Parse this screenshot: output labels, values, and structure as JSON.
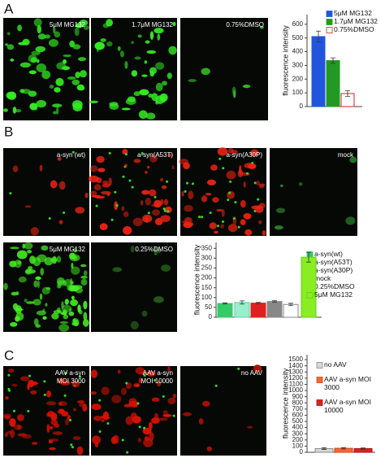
{
  "panels": [
    {
      "label": "A",
      "images": [
        [
          "5μM MG132"
        ],
        [
          "1.7μM MG132"
        ],
        [
          "0.75%DMSO"
        ]
      ]
    },
    {
      "label": "B",
      "images": [
        [
          "a-syn (wt)"
        ],
        [
          "a-syn(A53T)"
        ],
        [
          "a-syn(A30P)"
        ],
        [
          "mock"
        ],
        [
          "5μM MG132"
        ],
        [
          "0.25%DMSO"
        ]
      ]
    },
    {
      "label": "C",
      "images": [
        [
          "AAV   a-syn",
          "MOI 3000"
        ],
        [
          "AAV   a-syn",
          "MOI 10000"
        ],
        [
          "no AAV"
        ]
      ]
    }
  ],
  "chart_data": [
    {
      "type": "bar",
      "ylabel": "fluorescence intensity",
      "categories": [
        "5μM MG132",
        "1.7μM MG132",
        "0.75%DMSO"
      ],
      "values": [
        510,
        335,
        95
      ],
      "errors": [
        40,
        20,
        20
      ],
      "colors": [
        "#2255dd",
        "#229922",
        "#ffffff"
      ],
      "edgecolors": [
        "#2255dd",
        "#229922",
        "#dd2222"
      ],
      "ylim": [
        0,
        670
      ],
      "yticks": [
        0,
        100,
        200,
        300,
        400,
        500,
        600
      ]
    },
    {
      "type": "bar",
      "ylabel": "fluorescence intensity",
      "categories": [
        "a-syn(wt)",
        "a-syn(A53T)",
        "a-syn(A30P)",
        "mock",
        "0.25%DMSO",
        "5μM MG132"
      ],
      "values": [
        70,
        75,
        72,
        80,
        65,
        305
      ],
      "errors": [
        3,
        8,
        4,
        4,
        6,
        25
      ],
      "colors": [
        "#33cc66",
        "#99eecc",
        "#e02020",
        "#888888",
        "#ffffff",
        "#88ee22"
      ],
      "edgecolors": [
        "#33cc66",
        "#66ccaa",
        "#e02020",
        "#888888",
        "#888888",
        "#66cc11"
      ],
      "ylim": [
        0,
        380
      ],
      "yticks": [
        0,
        50,
        100,
        150,
        200,
        250,
        300,
        350
      ]
    },
    {
      "type": "bar",
      "ylabel": "fluorescence intensity",
      "categories": [
        "no AAV",
        "AAV a-syn MOI 3000",
        "AAV a-syn MOI 10000"
      ],
      "values": [
        60,
        65,
        60
      ],
      "errors": [
        15,
        12,
        10
      ],
      "colors": [
        "#d8d8d8",
        "#ff6633",
        "#e02020"
      ],
      "edgecolors": [
        "#888888",
        "#cc4411",
        "#aa1111"
      ],
      "ylim": [
        0,
        1580
      ],
      "yticks": [
        0,
        100,
        200,
        300,
        400,
        500,
        600,
        700,
        800,
        900,
        1000,
        1100,
        1200,
        1300,
        1400,
        1500
      ]
    }
  ]
}
